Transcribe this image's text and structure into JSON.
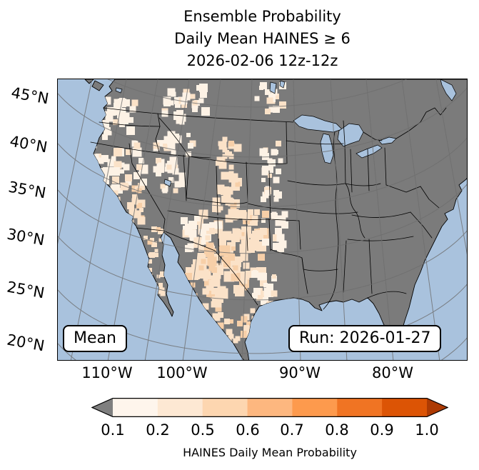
{
  "title": {
    "line1": "Ensemble Probability",
    "line2": "Daily Mean HAINES ≥ 6",
    "line3": "2026-02-06 12z-12z"
  },
  "map": {
    "mean_label": "Mean",
    "run_label": "Run: 2026-01-27",
    "lat_ticks": [
      "45°N",
      "40°N",
      "35°N",
      "30°N",
      "25°N",
      "20°N"
    ],
    "lon_ticks": [
      "110°W",
      "100°W",
      "90°W",
      "80°W"
    ]
  },
  "colorbar": {
    "label": "HAINES Daily Mean Probability",
    "ticks": [
      "0.1",
      "0.2",
      "0.5",
      "0.6",
      "0.7",
      "0.8",
      "0.9",
      "1.0"
    ],
    "segment_colors": [
      "#fef5ec",
      "#fde8d3",
      "#fdd6b0",
      "#fdb77f",
      "#fd9a4d",
      "#f07423",
      "#dc5405"
    ],
    "under_color": "#7f7f7f",
    "over_color": "#ad3a03"
  },
  "colors": {
    "background": "#ffffff",
    "ocean": "#a9c2dd",
    "land": "#7b7b7b",
    "coastline": "#000000",
    "grid": "#6e6e6e",
    "prob_shades": [
      "#fdf2e5",
      "#fbe2c8",
      "#f7cfa8"
    ]
  },
  "chart_data": {
    "type": "heatmap",
    "title": "Ensemble Probability Daily Mean HAINES ≥ 6",
    "valid_period": "2026-02-06 12z-12z",
    "statistic": "Mean",
    "model_run": "Run: 2026-01-27",
    "colorbar_label": "HAINES Daily Mean Probability",
    "levels": [
      0.1,
      0.2,
      0.5,
      0.6,
      0.7,
      0.8,
      0.9,
      1.0
    ],
    "under_level_color_meaning": "probability < 0.1 shown gray (same as land)",
    "lat_ticks_deg_n": [
      45,
      40,
      35,
      30,
      25,
      20
    ],
    "lon_ticks_deg_w": [
      110,
      100,
      90,
      80
    ],
    "regions_shaded": [
      {
        "region": "Pacific Northwest (WA/OR Cascades)",
        "probability": "0.1-0.2"
      },
      {
        "region": "Northern California / Sierra Nevada",
        "probability": "0.1-0.5"
      },
      {
        "region": "Great Basin (Nevada / Utah)",
        "probability": "0.1-0.2"
      },
      {
        "region": "Rocky Mountain Front (Wyoming / Colorado)",
        "probability": "0.1-0.5"
      },
      {
        "region": "New Mexico and West Texas",
        "probability": "0.1-0.5"
      },
      {
        "region": "Texas Panhandle to Central Texas",
        "probability": "0.1-0.5"
      },
      {
        "region": "Northern Mexico / Sierra Madre and Baja California",
        "probability": "0.1-0.5"
      },
      {
        "region": "Eastern CONUS and Canada",
        "probability": "< 0.1 (gray)"
      }
    ]
  }
}
